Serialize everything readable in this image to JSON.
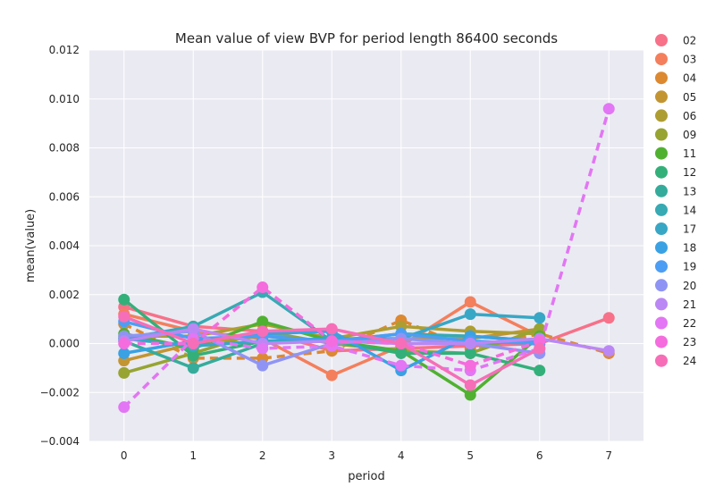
{
  "chart_data": {
    "type": "line",
    "title": "Mean value of view BVP for period length 86400 seconds",
    "xlabel": "period",
    "ylabel": "mean(value)",
    "categories": [
      0,
      1,
      2,
      3,
      4,
      5,
      6,
      7
    ],
    "x_tick_labels": [
      "0",
      "1",
      "2",
      "3",
      "4",
      "5",
      "6",
      "7"
    ],
    "ylim": [
      -0.004,
      0.012
    ],
    "y_ticks": [
      -0.004,
      -0.002,
      0.0,
      0.002,
      0.004,
      0.006,
      0.008,
      0.01,
      0.012
    ],
    "y_tick_labels": [
      "−0.004",
      "−0.002",
      "0.000",
      "0.002",
      "0.004",
      "0.006",
      "0.008",
      "0.010",
      "0.012"
    ],
    "grid": true,
    "legend_position": "right",
    "background": "#eaeaf2",
    "series": [
      {
        "name": "02",
        "color": "#f77189",
        "dashed": false,
        "values": [
          0.0015,
          0.0007,
          0.0005,
          -0.0003,
          -0.0002,
          -0.0001,
          0.0,
          0.00105
        ]
      },
      {
        "name": "03",
        "color": "#f47f5c",
        "dashed": false,
        "values": [
          0.0012,
          0.0005,
          0.0002,
          -0.0013,
          -0.0001,
          0.0017,
          0.0003,
          null
        ]
      },
      {
        "name": "04",
        "color": "#dc8932",
        "dashed": true,
        "values": [
          0.0008,
          -0.0006,
          -0.0006,
          -0.0003,
          0.00095,
          -0.0002,
          0.0004,
          -0.0004
        ]
      },
      {
        "name": "05",
        "color": "#c39532",
        "dashed": false,
        "values": [
          -0.0007,
          0.0,
          0.0003,
          0.0001,
          0.0002,
          0.0002,
          0.0006,
          null
        ]
      },
      {
        "name": "06",
        "color": "#ae9d31",
        "dashed": false,
        "values": [
          0.0003,
          0.0003,
          0.0008,
          0.0002,
          0.0007,
          0.0005,
          0.0004,
          null
        ]
      },
      {
        "name": "09",
        "color": "#97a431",
        "dashed": false,
        "values": [
          -0.0012,
          -0.0004,
          0.0005,
          0.0,
          -0.0003,
          -0.0004,
          0.0006,
          null
        ]
      },
      {
        "name": "11",
        "color": "#50b131",
        "dashed": false,
        "values": [
          0.0004,
          -0.0002,
          0.0009,
          0.0001,
          -0.0003,
          -0.0021,
          0.0003,
          null
        ]
      },
      {
        "name": "12",
        "color": "#33b07a",
        "dashed": false,
        "values": [
          0.0018,
          -0.0005,
          0.0001,
          0.0001,
          -0.0004,
          -0.0004,
          -0.0011,
          null
        ]
      },
      {
        "name": "13",
        "color": "#35ac9b",
        "dashed": false,
        "values": [
          0.0001,
          -0.001,
          0.0,
          0.0002,
          0.0,
          0.0,
          0.0001,
          null
        ]
      },
      {
        "name": "14",
        "color": "#37aab3",
        "dashed": false,
        "values": [
          0.0002,
          0.0007,
          0.0021,
          0.0001,
          0.0004,
          0.0003,
          0.0001,
          null
        ]
      },
      {
        "name": "17",
        "color": "#38a7c5",
        "dashed": false,
        "values": [
          0.0002,
          -0.0001,
          0.0001,
          0.0002,
          0.0002,
          0.0012,
          0.00105,
          null
        ]
      },
      {
        "name": "18",
        "color": "#3aa1e3",
        "dashed": false,
        "values": [
          -0.0004,
          0.0001,
          0.0004,
          0.0005,
          -0.0011,
          0.0003,
          0.0001,
          null
        ]
      },
      {
        "name": "19",
        "color": "#4c9ef4",
        "dashed": false,
        "values": [
          0.0009,
          0.0002,
          0.0003,
          0.0001,
          0.0004,
          0.0001,
          0.0,
          null
        ]
      },
      {
        "name": "20",
        "color": "#8f94f4",
        "dashed": false,
        "values": [
          0.0003,
          0.0005,
          -0.0009,
          0.0,
          0.0002,
          0.0,
          -0.0004,
          null
        ]
      },
      {
        "name": "21",
        "color": "#bb87f4",
        "dashed": false,
        "values": [
          0.0001,
          0.0006,
          0.0,
          0.0001,
          0.0,
          0.0,
          0.0002,
          -0.0003
        ]
      },
      {
        "name": "22",
        "color": "#e276f4",
        "dashed": true,
        "values": [
          -0.0026,
          0.0002,
          -0.0002,
          -0.0001,
          -0.0009,
          -0.0011,
          -0.0002,
          0.0096
        ]
      },
      {
        "name": "23",
        "color": "#f46cde",
        "dashed": true,
        "values": [
          0.0,
          0.0,
          0.0023,
          0.0001,
          0.0,
          -0.0009,
          0.0001,
          null
        ]
      },
      {
        "name": "24",
        "color": "#f66eb7",
        "dashed": false,
        "values": [
          0.0011,
          0.0,
          0.0005,
          0.0006,
          0.0,
          -0.0017,
          -0.0002,
          null
        ]
      }
    ]
  }
}
